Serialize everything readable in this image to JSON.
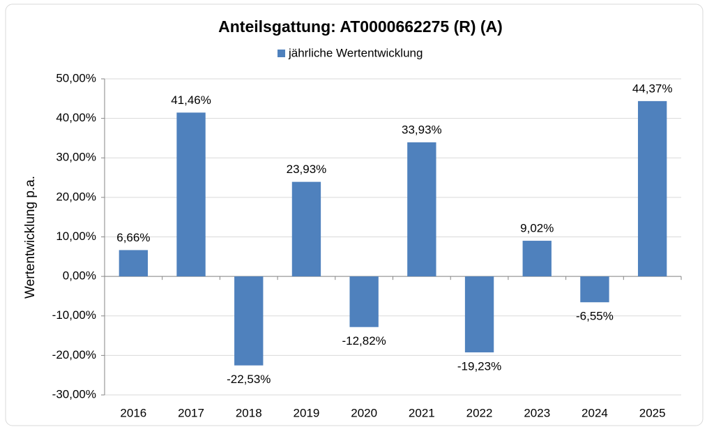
{
  "chart_data": {
    "type": "bar",
    "title": "Anteilsgattung: AT0000662275 (R) (A)",
    "y_label": "Wertentwicklung p.a.",
    "categories": [
      "2016",
      "2017",
      "2018",
      "2019",
      "2020",
      "2021",
      "2022",
      "2023",
      "2024",
      "2025"
    ],
    "series": [
      {
        "name": "jährliche Wertentwicklung",
        "color": "#4f81bd",
        "values": [
          6.66,
          41.46,
          -22.53,
          23.93,
          -12.82,
          33.93,
          -19.23,
          9.02,
          -6.55,
          44.37
        ],
        "value_labels": [
          "6,66%",
          "41,46%",
          "-22,53%",
          "23,93%",
          "-12,82%",
          "33,93%",
          "-19,23%",
          "9,02%",
          "-6,55%",
          "44,37%"
        ]
      }
    ],
    "ylim": [
      -30,
      50
    ],
    "yticks": [
      {
        "value": -30,
        "label": "-30,00%"
      },
      {
        "value": -20,
        "label": "-20,00%"
      },
      {
        "value": -10,
        "label": "-10,00%"
      },
      {
        "value": 0,
        "label": "0,00%"
      },
      {
        "value": 10,
        "label": "10,00%"
      },
      {
        "value": 20,
        "label": "20,00%"
      },
      {
        "value": 30,
        "label": "30,00%"
      },
      {
        "value": 40,
        "label": "40,00%"
      },
      {
        "value": 50,
        "label": "50,00%"
      }
    ],
    "grid": true,
    "legend": "top"
  }
}
